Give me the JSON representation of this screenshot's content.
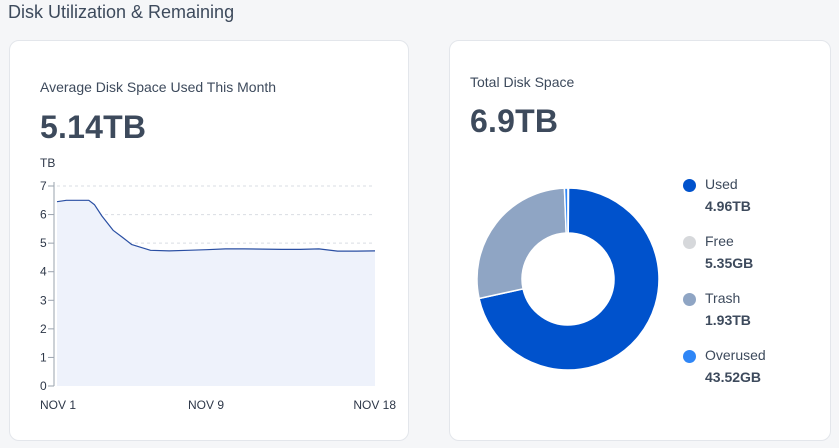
{
  "section_title": "Disk Utilization & Remaining",
  "left_card": {
    "label": "Average Disk Space Used This Month",
    "value": "5.14TB"
  },
  "right_card": {
    "label": "Total Disk Space",
    "value": "6.9TB"
  },
  "legend": [
    {
      "name": "Used",
      "value": "4.96TB",
      "color": "#0052cc"
    },
    {
      "name": "Free",
      "value": "5.35GB",
      "color": "#d6d8db"
    },
    {
      "name": "Trash",
      "value": "1.93TB",
      "color": "#8fa5c4"
    },
    {
      "name": "Overused",
      "value": "43.52GB",
      "color": "#2f86f6"
    }
  ],
  "chart_data": [
    {
      "type": "area",
      "ylabel": "TB",
      "ylim": [
        0,
        7
      ],
      "yticks": [
        "0",
        "1",
        "2",
        "3",
        "4",
        "5",
        "6",
        "7"
      ],
      "xtick_labels": [
        "NOV 1",
        "NOV 9",
        "NOV 18"
      ],
      "xlim": [
        1,
        18
      ],
      "x": [
        1,
        1.5,
        2,
        2.7,
        3,
        3.4,
        4,
        4.5,
        5,
        6,
        7,
        8,
        9,
        10,
        11,
        12,
        13,
        14,
        15,
        16,
        17,
        18
      ],
      "y": [
        6.45,
        6.5,
        6.5,
        6.5,
        6.35,
        5.95,
        5.45,
        5.2,
        4.95,
        4.75,
        4.73,
        4.75,
        4.77,
        4.8,
        4.8,
        4.79,
        4.78,
        4.78,
        4.8,
        4.72,
        4.72,
        4.73
      ],
      "color": "#2a4fa3",
      "fill": "#eef2fb"
    },
    {
      "type": "pie",
      "categories": [
        "Used",
        "Free",
        "Trash",
        "Overused"
      ],
      "values": [
        4960,
        5.35,
        1930,
        43.52
      ],
      "colors": [
        "#0052cc",
        "#d6d8db",
        "#8fa5c4",
        "#2f86f6"
      ]
    }
  ]
}
